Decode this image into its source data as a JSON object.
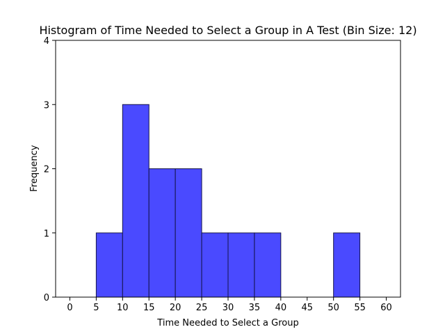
{
  "chart_data": {
    "type": "bar",
    "title": "Histogram of Time Needed to Select a Group in A Test (Bin Size: 12)",
    "xlabel": "Time Needed to Select a Group",
    "ylabel": "Frequency",
    "bins": [
      {
        "start": 5,
        "end": 10,
        "count": 1
      },
      {
        "start": 10,
        "end": 15,
        "count": 3
      },
      {
        "start": 15,
        "end": 20,
        "count": 2
      },
      {
        "start": 20,
        "end": 25,
        "count": 2
      },
      {
        "start": 25,
        "end": 30,
        "count": 1
      },
      {
        "start": 30,
        "end": 35,
        "count": 1
      },
      {
        "start": 35,
        "end": 40,
        "count": 1
      },
      {
        "start": 40,
        "end": 45,
        "count": 0
      },
      {
        "start": 45,
        "end": 50,
        "count": 0
      },
      {
        "start": 50,
        "end": 55,
        "count": 1
      },
      {
        "start": 55,
        "end": 60,
        "count": 0
      }
    ],
    "x_ticks": [
      0,
      5,
      10,
      15,
      20,
      25,
      30,
      35,
      40,
      45,
      50,
      55,
      60
    ],
    "y_ticks": [
      0,
      1,
      2,
      3,
      4
    ],
    "xlim": [
      -2.7,
      62.7
    ],
    "ylim": [
      0,
      4
    ],
    "grid": false,
    "bar_color": "#4a4aff",
    "bar_edge_color": "#14144a"
  }
}
